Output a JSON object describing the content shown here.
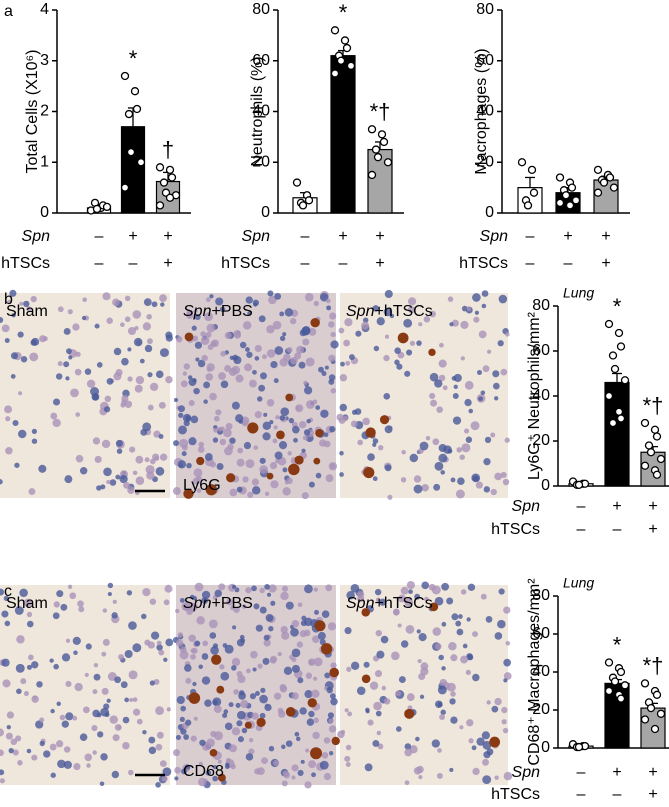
{
  "panels": {
    "letters": [
      "a",
      "b",
      "c"
    ],
    "images": {
      "sham": "Sham",
      "pbs": [
        "Spn",
        "+PBS"
      ],
      "htsc": [
        "Spn",
        "+hTSCs"
      ]
    },
    "stains": [
      "Ly6G",
      "CD68"
    ]
  },
  "chart_data": [
    {
      "type": "bar",
      "ylabel": "Total Cells (X10⁶)",
      "ylim": [
        0,
        4
      ],
      "yticks": [
        0,
        1,
        2,
        3,
        4
      ],
      "values": [
        0.1,
        1.7,
        0.62
      ],
      "errors": [
        0.05,
        0.37,
        0.18
      ],
      "colors": [
        "#ffffff",
        "#000000",
        "#a6a6a6"
      ],
      "points": [
        [
          0.05,
          0.1,
          0.15,
          0.2,
          0.08,
          0.12
        ],
        [
          2.7,
          2.4,
          2.05,
          1.95,
          1.2,
          1.0,
          0.5
        ],
        [
          0.9,
          0.85,
          0.7,
          0.6,
          0.4,
          0.35,
          0.15,
          0.3
        ]
      ],
      "annotations": [
        null,
        "*",
        "†"
      ],
      "factors": [
        {
          "name": "Spn",
          "levels": [
            "–",
            "+",
            "+"
          ]
        },
        {
          "name": "hTSCs",
          "levels": [
            "–",
            "–",
            "+"
          ]
        }
      ]
    },
    {
      "type": "bar",
      "ylabel": "Neutrophils (%)",
      "ylim": [
        0,
        80
      ],
      "yticks": [
        0,
        20,
        40,
        60,
        80
      ],
      "values": [
        6,
        62,
        25
      ],
      "errors": [
        2,
        2,
        3
      ],
      "colors": [
        "#ffffff",
        "#000000",
        "#a6a6a6"
      ],
      "points": [
        [
          12,
          7,
          5,
          4,
          3
        ],
        [
          72,
          68,
          65,
          62,
          60,
          58,
          55
        ],
        [
          33,
          31,
          28,
          25,
          22,
          20,
          15
        ]
      ],
      "annotations": [
        null,
        "*",
        "*†"
      ],
      "factors": [
        {
          "name": "Spn",
          "levels": [
            "–",
            "+",
            "+"
          ]
        },
        {
          "name": "hTSCs",
          "levels": [
            "–",
            "–",
            "+"
          ]
        }
      ]
    },
    {
      "type": "bar",
      "ylabel": "Macrophages (%)",
      "ylim": [
        0,
        80
      ],
      "yticks": [
        0,
        20,
        40,
        60,
        80
      ],
      "values": [
        10,
        8,
        13
      ],
      "errors": [
        4,
        2,
        1.5
      ],
      "colors": [
        "#ffffff",
        "#000000",
        "#a6a6a6"
      ],
      "points": [
        [
          20,
          17,
          8,
          5,
          3
        ],
        [
          14,
          12,
          10,
          9,
          7,
          5,
          4,
          3
        ],
        [
          17,
          15,
          14,
          13,
          12,
          10,
          8
        ]
      ],
      "annotations": [
        null,
        null,
        null
      ],
      "factors": [
        {
          "name": "Spn",
          "levels": [
            "–",
            "+",
            "+"
          ]
        },
        {
          "name": "hTSCs",
          "levels": [
            "–",
            "–",
            "+"
          ]
        }
      ]
    },
    {
      "type": "bar",
      "title": "Lung",
      "ylabel": "Ly6G⁺ Neutrophils/mm²",
      "ylim": [
        0,
        80
      ],
      "yticks": [
        0,
        20,
        40,
        60,
        80
      ],
      "values": [
        1,
        46,
        15
      ],
      "errors": [
        0.5,
        4,
        2.5
      ],
      "colors": [
        "#ffffff",
        "#000000",
        "#a6a6a6"
      ],
      "points": [
        [
          2,
          1,
          1,
          0.5,
          0.5
        ],
        [
          72,
          68,
          62,
          58,
          52,
          47,
          40,
          33,
          30,
          28
        ],
        [
          28,
          25,
          22,
          18,
          15,
          12,
          9,
          7,
          5
        ]
      ],
      "annotations": [
        null,
        "*",
        "*†"
      ],
      "factors": [
        {
          "name": "Spn",
          "levels": [
            "–",
            "+",
            "+"
          ]
        },
        {
          "name": "hTSCs",
          "levels": [
            "–",
            "–",
            "+"
          ]
        }
      ]
    },
    {
      "type": "bar",
      "title": "Lung",
      "ylabel": "CD68⁺ Macrophages/mm²",
      "ylim": [
        0,
        80
      ],
      "yticks": [
        0,
        20,
        40,
        60,
        80
      ],
      "values": [
        1,
        34,
        21
      ],
      "errors": [
        0.5,
        2,
        2.5
      ],
      "colors": [
        "#ffffff",
        "#000000",
        "#a6a6a6"
      ],
      "points": [
        [
          2,
          1,
          1,
          0.5,
          0.5
        ],
        [
          45,
          42,
          40,
          37,
          35,
          33,
          30,
          28,
          26
        ],
        [
          34,
          30,
          28,
          24,
          21,
          18,
          15,
          10
        ]
      ],
      "annotations": [
        null,
        "*",
        "*†"
      ],
      "factors": [
        {
          "name": "Spn",
          "levels": [
            "–",
            "+",
            "+"
          ]
        },
        {
          "name": "hTSCs",
          "levels": [
            "–",
            "–",
            "+"
          ]
        }
      ]
    }
  ]
}
